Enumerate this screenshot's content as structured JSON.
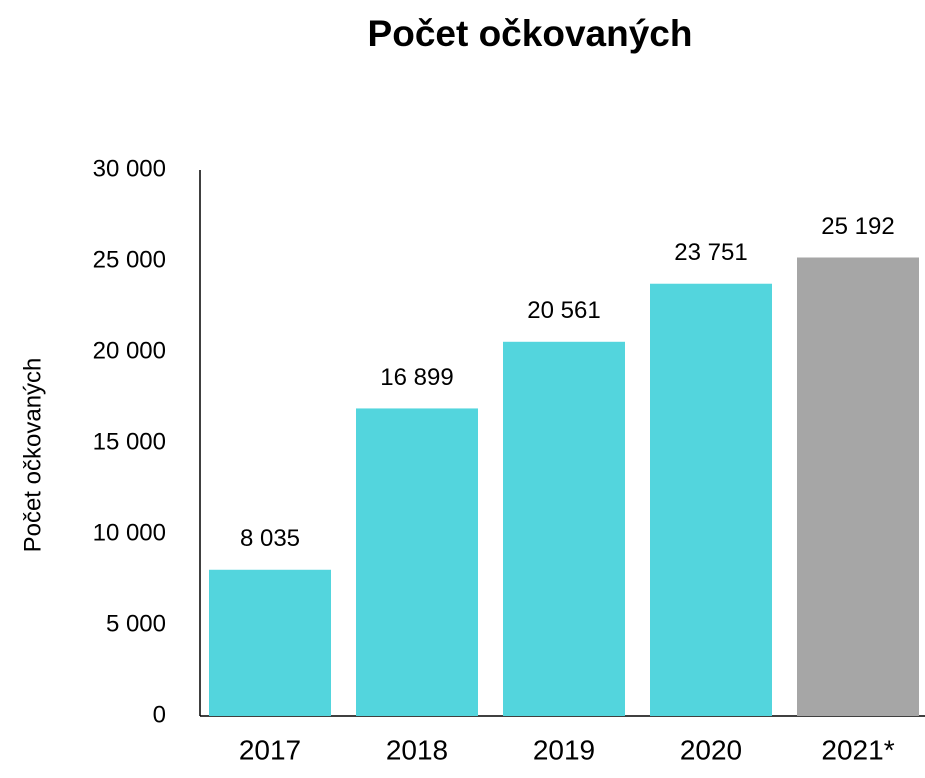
{
  "chart_data": {
    "type": "bar",
    "title": "Počet očkovaných",
    "ylabel": "Počet očkovaných",
    "categories": [
      "2017",
      "2018",
      "2019",
      "2020",
      "2021*"
    ],
    "values": [
      8035,
      16899,
      20561,
      23751,
      25192
    ],
    "value_labels": [
      "8 035",
      "16 899",
      "20 561",
      "23 751",
      "25 192"
    ],
    "colors": [
      "#53d5dd",
      "#53d5dd",
      "#53d5dd",
      "#53d5dd",
      "#a6a6a6"
    ],
    "ylim": [
      0,
      30000
    ],
    "yticks": [
      0,
      {
        "value": 5000,
        "label": "5 000"
      },
      {
        "value": 10000,
        "label": "10 000"
      },
      {
        "value": 15000,
        "label": "15 000"
      },
      {
        "value": 20000,
        "label": "20 000"
      },
      {
        "value": 25000,
        "label": "25 000"
      },
      {
        "value": 30000,
        "label": "30 000"
      }
    ],
    "grid": false
  }
}
